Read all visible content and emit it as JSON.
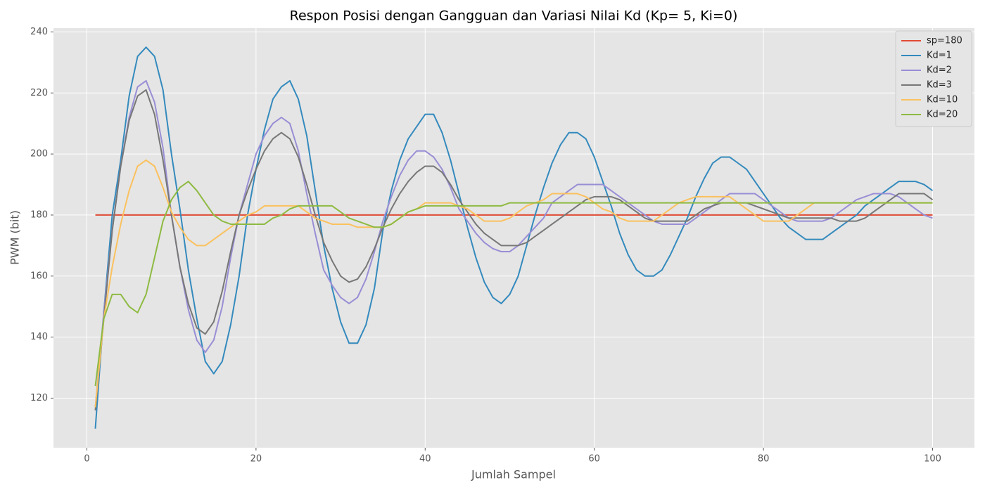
{
  "chart_data": {
    "type": "line",
    "title": "Respon Posisi dengan Gangguan dan Variasi Nilai Kd (Kp= 5, Ki=0)",
    "x_label": "Jumlah Sampel",
    "y_label": "PWM (bit)",
    "x": [
      1,
      2,
      3,
      4,
      5,
      6,
      7,
      8,
      9,
      10,
      11,
      12,
      13,
      14,
      15,
      16,
      17,
      18,
      19,
      20,
      21,
      22,
      23,
      24,
      25,
      26,
      27,
      28,
      29,
      30,
      31,
      32,
      33,
      34,
      35,
      36,
      37,
      38,
      39,
      40,
      41,
      42,
      43,
      44,
      45,
      46,
      47,
      48,
      49,
      50,
      51,
      52,
      53,
      54,
      55,
      56,
      57,
      58,
      59,
      60,
      61,
      62,
      63,
      64,
      65,
      66,
      67,
      68,
      69,
      70,
      71,
      72,
      73,
      74,
      75,
      76,
      77,
      78,
      79,
      80,
      81,
      82,
      83,
      84,
      85,
      86,
      87,
      88,
      89,
      90,
      91,
      92,
      93,
      94,
      95,
      96,
      97,
      98,
      99,
      100
    ],
    "series": [
      {
        "name": "sp=180",
        "color": "#e24a33",
        "values": [
          180,
          180,
          180,
          180,
          180,
          180,
          180,
          180,
          180,
          180,
          180,
          180,
          180,
          180,
          180,
          180,
          180,
          180,
          180,
          180,
          180,
          180,
          180,
          180,
          180,
          180,
          180,
          180,
          180,
          180,
          180,
          180,
          180,
          180,
          180,
          180,
          180,
          180,
          180,
          180,
          180,
          180,
          180,
          180,
          180,
          180,
          180,
          180,
          180,
          180,
          180,
          180,
          180,
          180,
          180,
          180,
          180,
          180,
          180,
          180,
          180,
          180,
          180,
          180,
          180,
          180,
          180,
          180,
          180,
          180,
          180,
          180,
          180,
          180,
          180,
          180,
          180,
          180,
          180,
          180,
          180,
          180,
          180,
          180,
          180,
          180,
          180,
          180,
          180,
          180,
          180,
          180,
          180,
          180,
          180,
          180,
          180,
          180,
          180,
          180
        ]
      },
      {
        "name": "Kd=1",
        "color": "#348abd",
        "values": [
          110,
          148,
          180,
          198,
          219,
          232,
          235,
          232,
          221,
          200,
          182,
          162,
          146,
          132,
          128,
          132,
          144,
          160,
          180,
          195,
          208,
          218,
          222,
          224,
          218,
          206,
          188,
          170,
          156,
          145,
          138,
          138,
          144,
          156,
          175,
          188,
          198,
          205,
          209,
          213,
          213,
          207,
          198,
          187,
          176,
          166,
          158,
          153,
          151,
          154,
          160,
          170,
          180,
          189,
          197,
          203,
          207,
          207,
          205,
          199,
          191,
          183,
          174,
          167,
          162,
          160,
          160,
          162,
          167,
          173,
          179,
          186,
          192,
          197,
          199,
          199,
          197,
          195,
          191,
          187,
          183,
          179,
          176,
          174,
          172,
          172,
          172,
          174,
          176,
          178,
          180,
          183,
          185,
          187,
          189,
          191,
          191,
          191,
          190,
          188
        ]
      },
      {
        "name": "Kd=2",
        "color": "#988ed5",
        "values": [
          117,
          148,
          175,
          196,
          212,
          222,
          224,
          217,
          202,
          180,
          163,
          149,
          139,
          135,
          139,
          150,
          166,
          180,
          190,
          200,
          206,
          210,
          212,
          210,
          201,
          187,
          174,
          162,
          157,
          153,
          151,
          153,
          159,
          168,
          178,
          186,
          193,
          198,
          201,
          201,
          199,
          195,
          189,
          182,
          178,
          174,
          171,
          169,
          168,
          168,
          170,
          173,
          176,
          179,
          184,
          186,
          188,
          190,
          190,
          190,
          190,
          188,
          186,
          184,
          182,
          180,
          178,
          177,
          177,
          177,
          177,
          179,
          181,
          183,
          185,
          187,
          187,
          187,
          187,
          185,
          183,
          181,
          179,
          178,
          178,
          178,
          178,
          179,
          181,
          183,
          185,
          186,
          187,
          187,
          187,
          186,
          184,
          182,
          180,
          179
        ]
      },
      {
        "name": "Kd=3",
        "color": "#777777",
        "values": [
          116,
          146,
          175,
          196,
          211,
          219,
          221,
          213,
          198,
          180,
          163,
          151,
          143,
          141,
          145,
          155,
          168,
          180,
          188,
          195,
          201,
          205,
          207,
          205,
          199,
          190,
          180,
          171,
          165,
          160,
          158,
          159,
          163,
          169,
          176,
          182,
          187,
          191,
          194,
          196,
          196,
          194,
          190,
          185,
          181,
          177,
          174,
          172,
          170,
          170,
          170,
          171,
          173,
          175,
          177,
          179,
          181,
          183,
          185,
          186,
          186,
          186,
          185,
          183,
          181,
          179,
          178,
          178,
          178,
          178,
          178,
          180,
          182,
          183,
          184,
          184,
          184,
          184,
          183,
          182,
          181,
          180,
          179,
          179,
          179,
          179,
          179,
          179,
          178,
          178,
          178,
          179,
          181,
          183,
          185,
          187,
          187,
          187,
          187,
          185
        ]
      },
      {
        "name": "Kd=10",
        "color": "#fbc15e",
        "values": [
          117,
          146,
          163,
          177,
          188,
          196,
          198,
          196,
          189,
          181,
          176,
          172,
          170,
          170,
          172,
          174,
          176,
          178,
          180,
          181,
          183,
          183,
          183,
          183,
          183,
          181,
          179,
          178,
          177,
          177,
          177,
          176,
          176,
          176,
          176,
          177,
          179,
          181,
          182,
          184,
          184,
          184,
          184,
          183,
          182,
          180,
          178,
          178,
          178,
          179,
          181,
          183,
          184,
          185,
          187,
          187,
          187,
          187,
          186,
          184,
          182,
          181,
          179,
          178,
          178,
          178,
          178,
          180,
          182,
          184,
          185,
          186,
          186,
          186,
          186,
          186,
          184,
          182,
          180,
          178,
          178,
          178,
          178,
          180,
          182,
          184,
          184,
          184,
          184,
          184,
          184,
          184,
          184,
          184,
          184,
          184,
          184,
          184,
          184,
          184
        ]
      },
      {
        "name": "Kd=20",
        "color": "#8eba42",
        "values": [
          124,
          146,
          154,
          154,
          150,
          148,
          154,
          166,
          178,
          185,
          189,
          191,
          188,
          184,
          180,
          178,
          177,
          177,
          177,
          177,
          177,
          179,
          180,
          182,
          183,
          183,
          183,
          183,
          183,
          181,
          179,
          178,
          177,
          176,
          176,
          177,
          179,
          181,
          182,
          183,
          183,
          183,
          183,
          183,
          183,
          183,
          183,
          183,
          183,
          184,
          184,
          184,
          184,
          184,
          184,
          184,
          184,
          184,
          184,
          184,
          184,
          184,
          184,
          184,
          184,
          184,
          184,
          184,
          184,
          184,
          184,
          184,
          184,
          184,
          184,
          184,
          184,
          184,
          184,
          184,
          184,
          184,
          184,
          184,
          184,
          184,
          184,
          184,
          184,
          184,
          184,
          184,
          184,
          184,
          184,
          184,
          184,
          184,
          184,
          184
        ]
      }
    ],
    "xlim": [
      -3.95,
      104.95
    ],
    "ylim": [
      103.75,
      241.25
    ],
    "xticks": [
      0,
      20,
      40,
      60,
      80,
      100
    ],
    "yticks": [
      120,
      140,
      160,
      180,
      200,
      220,
      240
    ],
    "grid": true,
    "legend": "upper right"
  }
}
